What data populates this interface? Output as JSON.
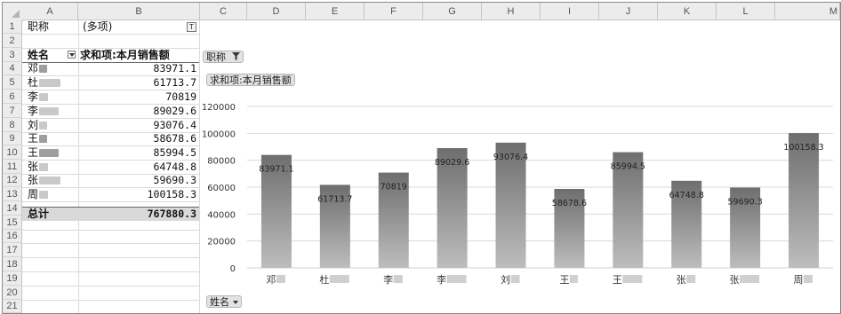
{
  "columns": [
    "A",
    "B",
    "C",
    "D",
    "E",
    "F",
    "G",
    "H",
    "I",
    "J",
    "K",
    "L",
    "M"
  ],
  "rows": [
    "1",
    "2",
    "3",
    "4",
    "5",
    "6",
    "7",
    "8",
    "9",
    "10",
    "11",
    "12",
    "13",
    "14",
    "15",
    "16",
    "17",
    "18",
    "19",
    "20",
    "21"
  ],
  "pivot": {
    "filter_label": "职称",
    "filter_value": "(多项)",
    "row_header": "姓名",
    "value_header": "求和项:本月销售额",
    "rows": [
      {
        "name": "邓",
        "value": "83971.1"
      },
      {
        "name": "杜",
        "value": "61713.7"
      },
      {
        "name": "李",
        "value": "70819"
      },
      {
        "name": "李",
        "value": "89029.6"
      },
      {
        "name": "刘",
        "value": "93076.4"
      },
      {
        "name": "王",
        "value": "58678.6"
      },
      {
        "name": "王",
        "value": "85994.5"
      },
      {
        "name": "张",
        "value": "64748.8"
      },
      {
        "name": "张",
        "value": "59690.3"
      },
      {
        "name": "周",
        "value": "100158.3"
      }
    ],
    "total_label": "总计",
    "total_value": "767880.3"
  },
  "chart_buttons": {
    "filter": "职称",
    "values": "求和项:本月销售额",
    "axis": "姓名"
  },
  "chart_data": {
    "type": "bar",
    "categories": [
      "邓",
      "杜",
      "李",
      "李",
      "刘",
      "王",
      "王",
      "张",
      "张",
      "周"
    ],
    "series": [
      {
        "values": [
          83971.1,
          61713.7,
          70819,
          89029.6,
          93076.4,
          58678.6,
          85994.5,
          64748.8,
          59690.3,
          100158.3
        ]
      }
    ],
    "data_labels": [
      "83971.1",
      "61713.7",
      "70819",
      "89029.6",
      "93076.4",
      "58678.6",
      "85994.5",
      "64748.8",
      "59690.3",
      "100158.3"
    ],
    "yticks": [
      "0",
      "20000",
      "40000",
      "60000",
      "80000",
      "100000",
      "120000"
    ],
    "ylim": [
      0,
      120000
    ],
    "grid": true,
    "legend": "none",
    "bar_color_top": "#6e6e6e",
    "bar_color_bottom": "#bdbdbd"
  }
}
